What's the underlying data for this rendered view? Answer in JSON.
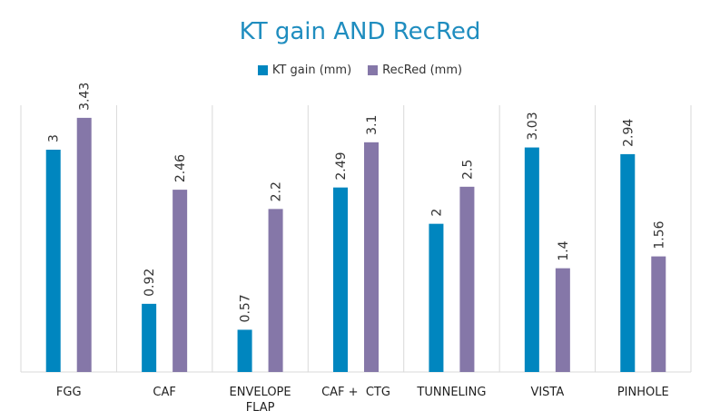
{
  "chart_data": {
    "type": "bar",
    "title": "KT gain AND RecRed",
    "categories": [
      "FGG",
      "CAF",
      "ENVELOPE FLAP",
      "CAF +  CTG",
      "TUNNELING",
      "VISTA",
      "PINHOLE"
    ],
    "series": [
      {
        "name": "KT gain (mm)",
        "color": "#0086bf",
        "values": [
          3,
          0.92,
          0.57,
          2.49,
          2,
          3.03,
          2.94
        ]
      },
      {
        "name": "RecRed (mm)",
        "color": "#8577a8",
        "values": [
          3.43,
          2.46,
          2.2,
          3.1,
          2.5,
          1.4,
          1.56
        ]
      }
    ],
    "value_labels": [
      [
        "3",
        "0.92",
        "0.57",
        "2.49",
        "2",
        "3.03",
        "2.94"
      ],
      [
        "3.43",
        "2.46",
        "2.2",
        "3.1",
        "2.5",
        "1.4",
        "1.56"
      ]
    ],
    "category_lines": [
      [
        "FGG"
      ],
      [
        "CAF"
      ],
      [
        "ENVELOPE",
        "FLAP"
      ],
      [
        "CAF +  CTG"
      ],
      [
        "TUNNELING"
      ],
      [
        "VISTA"
      ],
      [
        "PINHOLE"
      ]
    ],
    "ylim": [
      0,
      3.6
    ],
    "legend_position": "top",
    "grid": "vertical separators",
    "xlabel": "",
    "ylabel": ""
  }
}
